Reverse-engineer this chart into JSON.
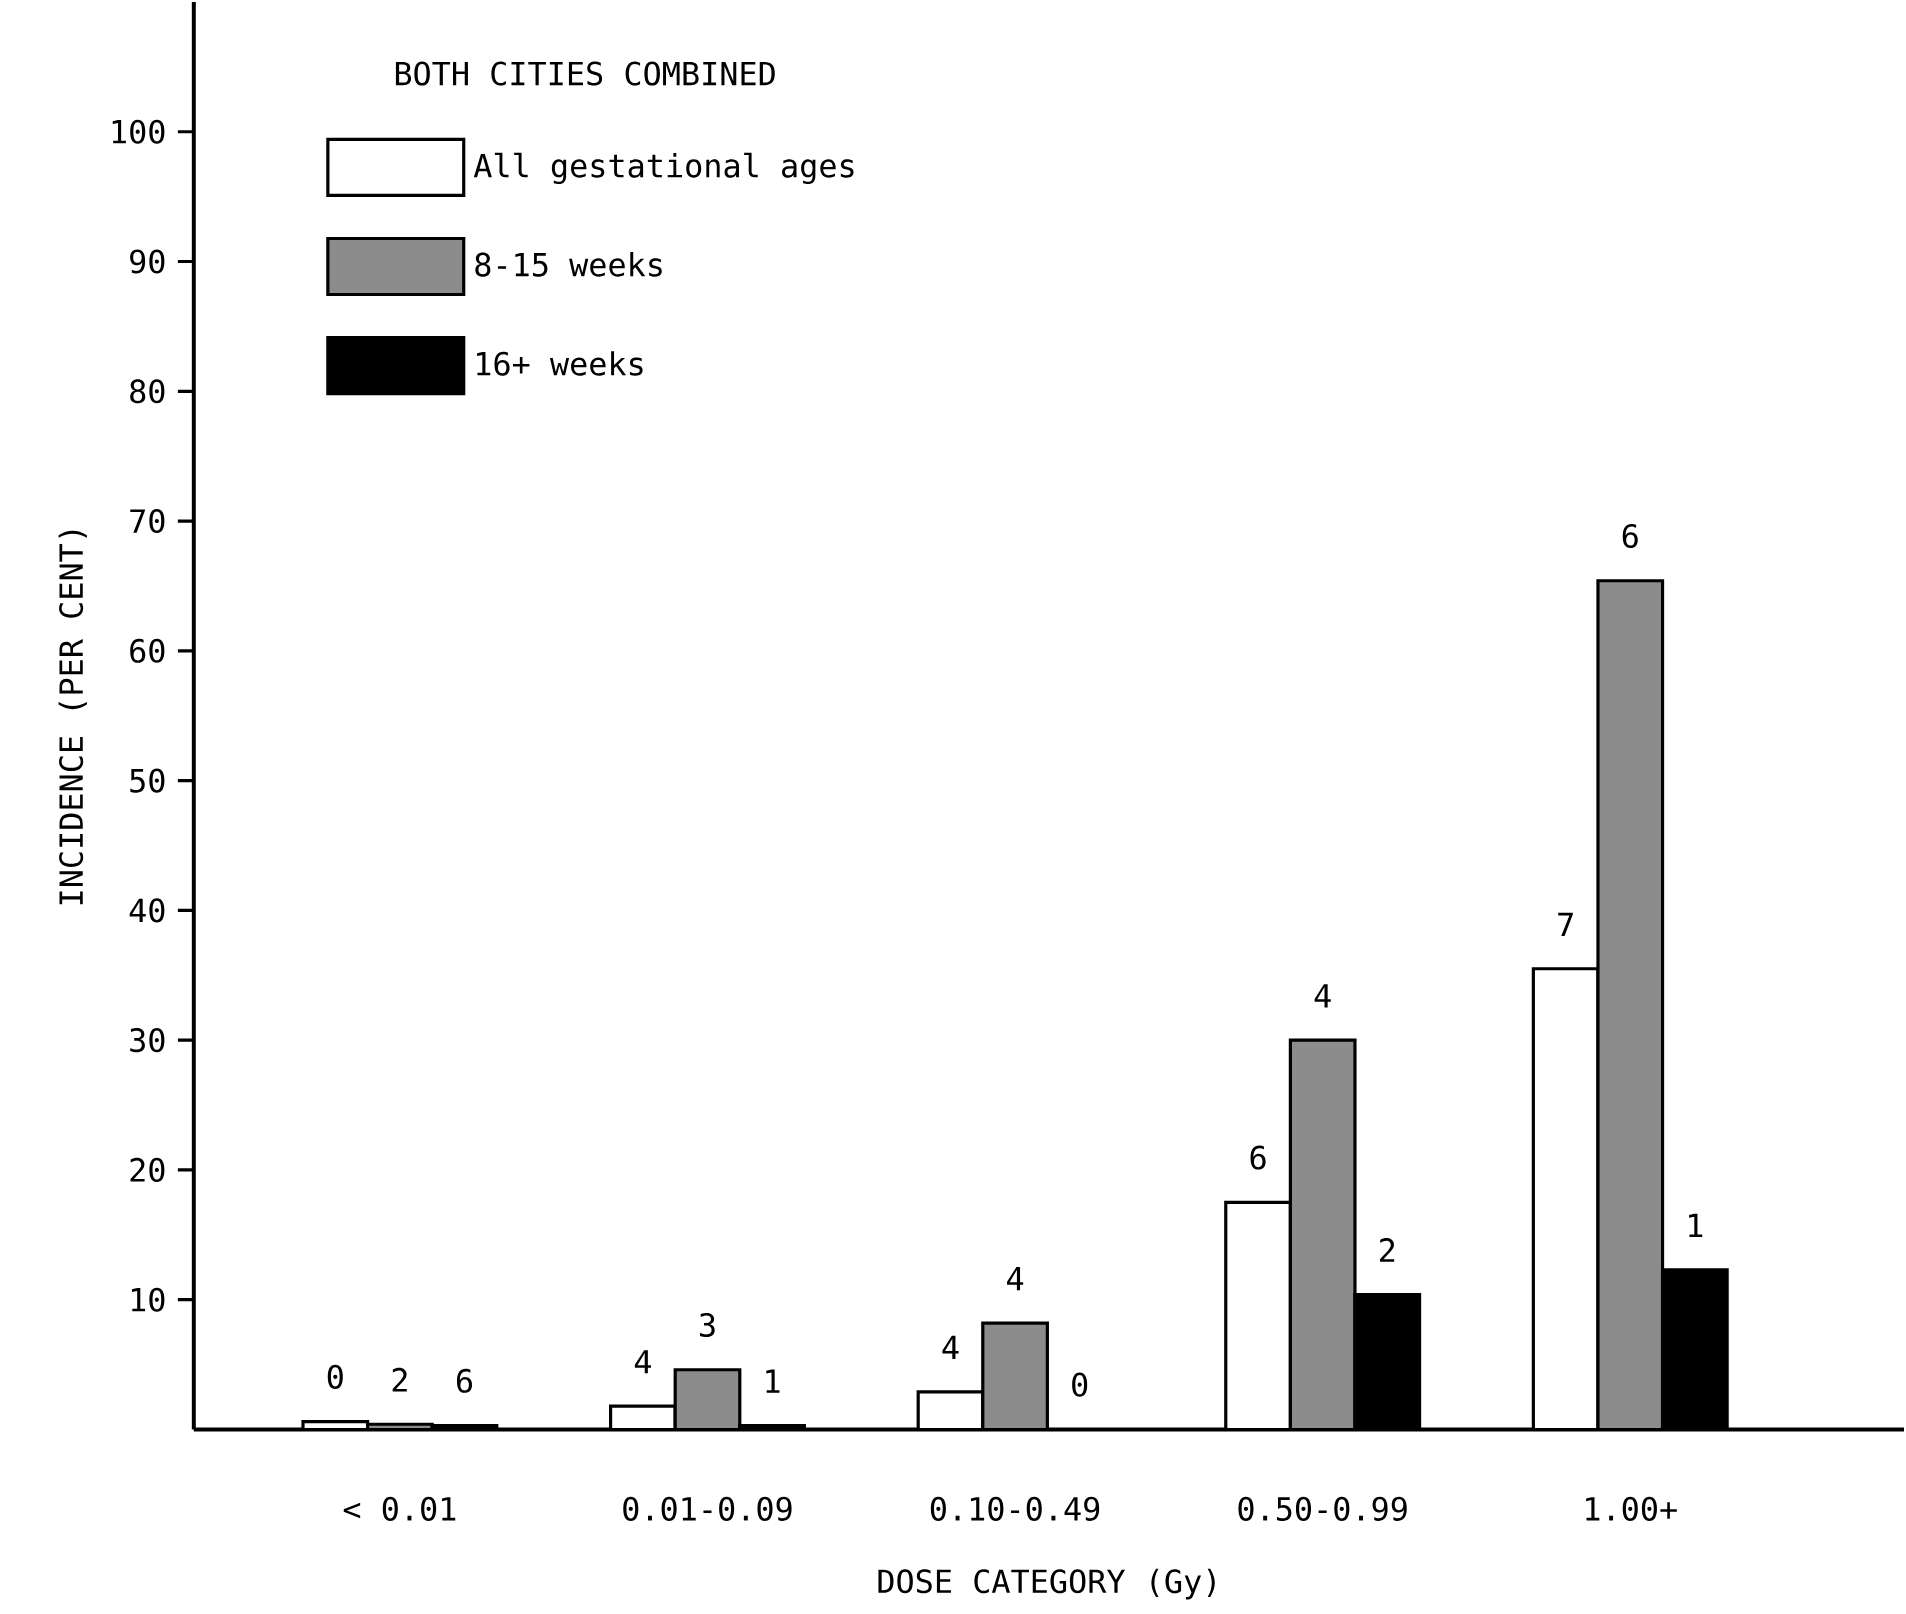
{
  "chart_data": {
    "type": "bar",
    "xlabel": "DOSE CATEGORY (Gy)",
    "ylabel": "INCIDENCE (PER CENT)",
    "legend_title": "BOTH CITIES COMBINED",
    "legend": "top left",
    "categories": [
      "< 0.01",
      "0.01-0.09",
      "0.10-0.49",
      "0.50-0.99",
      "1.00+"
    ],
    "series": [
      {
        "name": "All gestational ages",
        "color": "#ffffff",
        "values": [
          0.6,
          1.8,
          2.9,
          17.5,
          35.5
        ]
      },
      {
        "name": "8-15 weeks",
        "color": "#8c8c8c",
        "values": [
          0.4,
          4.6,
          8.2,
          30.0,
          65.4
        ]
      },
      {
        "name": "16+ weeks",
        "color": "#000000",
        "values": [
          0.3,
          0.3,
          0,
          10.4,
          12.3
        ]
      }
    ],
    "annotations": [
      "0",
      "2",
      "6",
      "4",
      "3",
      "1",
      "4",
      "4",
      "0",
      "6",
      "4",
      "2",
      "7",
      "6",
      "1"
    ],
    "ylim": [
      0,
      110
    ],
    "yticks": [
      10,
      20,
      30,
      40,
      50,
      60,
      70,
      80,
      90,
      100
    ]
  }
}
